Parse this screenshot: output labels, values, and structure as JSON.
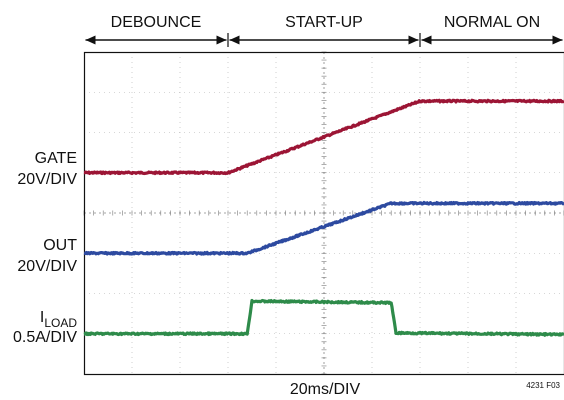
{
  "phases": [
    {
      "label": "DEBOUNCE",
      "start_div": 0,
      "end_div": 3
    },
    {
      "label": "START-UP",
      "start_div": 3,
      "end_div": 7
    },
    {
      "label": "NORMAL ON",
      "start_div": 7,
      "end_div": 10
    }
  ],
  "channel_labels": [
    {
      "lines": [
        "GATE",
        "20V/DIV"
      ]
    },
    {
      "lines": [
        "OUT",
        "20V/DIV"
      ]
    },
    {
      "main": "I",
      "sub": "LOAD",
      "second": "0.5A/DIV"
    }
  ],
  "xlabel": "20ms/DIV",
  "figure_id": "4231 F03",
  "colors": {
    "gate": "#9c1535",
    "out": "#2d4aa0",
    "iload": "#2e8b4a",
    "grid": "#b0b0b0",
    "frame": "#111111"
  },
  "chart_data": {
    "type": "line",
    "x_unit": "div",
    "x_range": [
      0,
      10
    ],
    "y_unit": "div",
    "y_range": [
      0,
      8
    ],
    "grid": true,
    "series": [
      {
        "name": "GATE",
        "color": "#9c1535",
        "x": [
          0,
          3.0,
          7.0,
          10
        ],
        "y": [
          5.0,
          5.0,
          6.78,
          6.78
        ]
      },
      {
        "name": "OUT",
        "color": "#2d4aa0",
        "x": [
          0,
          3.4,
          6.4,
          10
        ],
        "y": [
          3.0,
          3.0,
          4.24,
          4.24
        ]
      },
      {
        "name": "ILOAD",
        "color": "#2e8b4a",
        "x": [
          0,
          3.4,
          3.5,
          6.4,
          6.5,
          10
        ],
        "y": [
          1.0,
          1.0,
          1.81,
          1.77,
          1.02,
          0.98
        ]
      }
    ]
  }
}
